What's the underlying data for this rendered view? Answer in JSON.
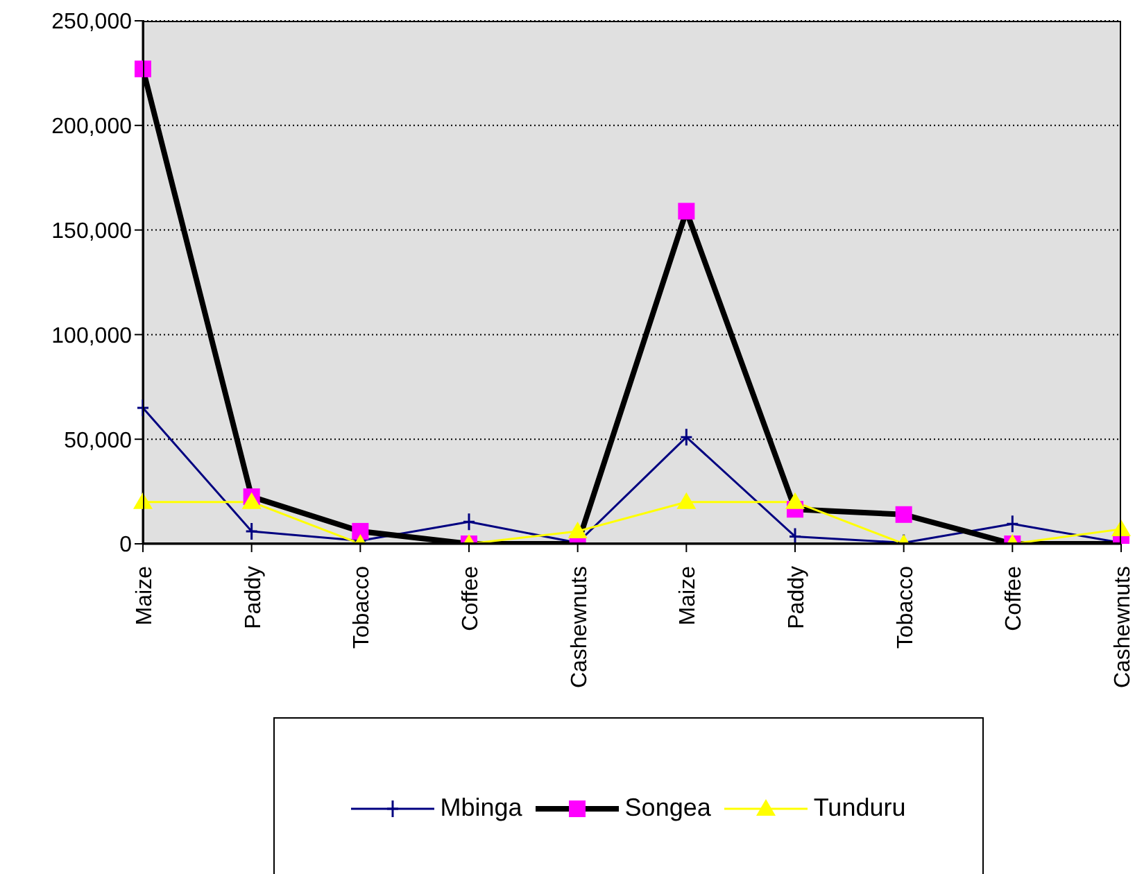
{
  "chart_data": {
    "type": "line",
    "categories": [
      "Maize",
      "Paddy",
      "Tobacco",
      "Coffee",
      "Cashewnuts",
      "Maize",
      "Paddy",
      "Tobacco",
      "Coffee",
      "Cashewnuts"
    ],
    "series": [
      {
        "name": "Mbinga",
        "color": "#000080",
        "marker": "cross",
        "values": [
          65000,
          6000,
          1500,
          10500,
          500,
          51000,
          3500,
          500,
          9500,
          500
        ]
      },
      {
        "name": "Songea",
        "color": "#000000",
        "marker": "square",
        "values": [
          227000,
          22500,
          6000,
          0,
          0,
          159000,
          16500,
          14000,
          0,
          0
        ]
      },
      {
        "name": "Tunduru",
        "color": "#ffff00",
        "marker": "triangle",
        "values": [
          20000,
          20000,
          0,
          0,
          6000,
          20000,
          20000,
          0,
          0,
          7000
        ]
      }
    ],
    "ylim": [
      0,
      250000
    ],
    "yticks": [
      0,
      {
        "value": 50000,
        "label": "50,000"
      },
      {
        "value": 100000,
        "label": "100,000"
      },
      {
        "value": 150000,
        "label": "150,000"
      },
      {
        "value": 200000,
        "label": "200,000"
      },
      {
        "value": 250000,
        "label": "250,000"
      }
    ],
    "grid": "y",
    "legend": "bottom"
  }
}
